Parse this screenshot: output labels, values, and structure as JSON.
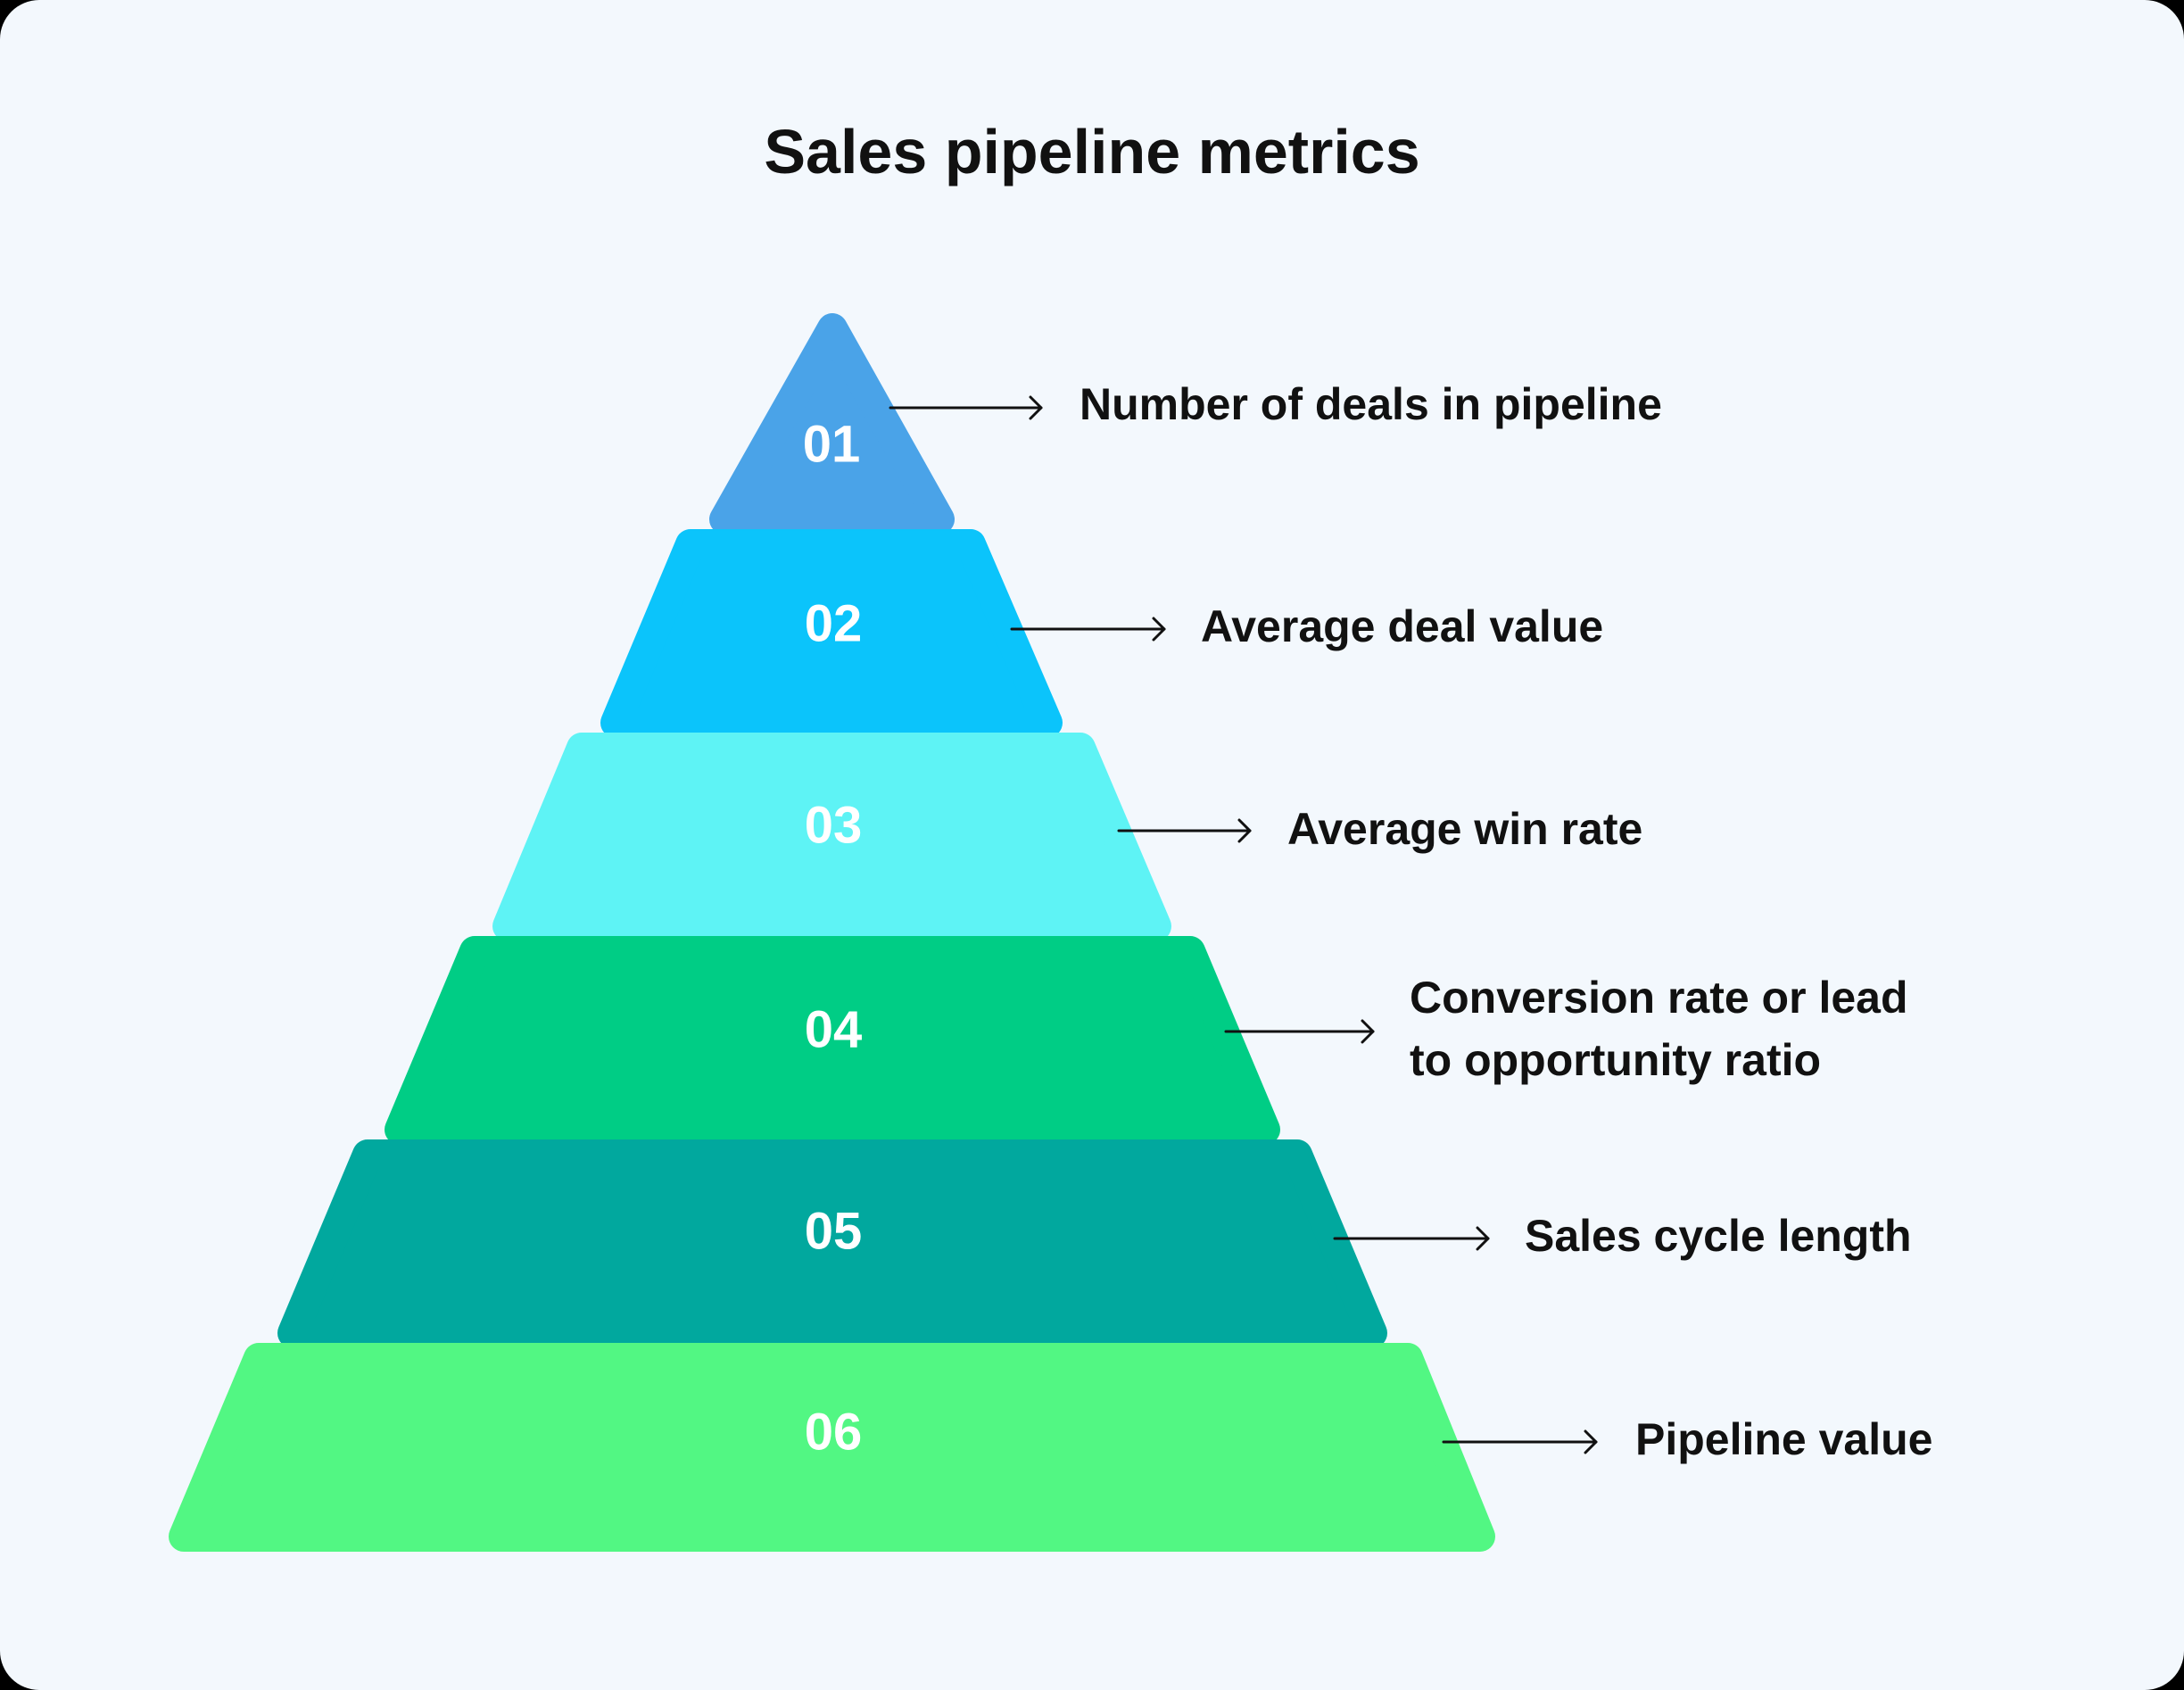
{
  "title": "Sales pipeline metrics",
  "tiers": [
    {
      "number": "01",
      "label_lines": [
        "Number of deals in pipeline"
      ],
      "color": "#4aa3e8"
    },
    {
      "number": "02",
      "label_lines": [
        "Average deal value"
      ],
      "color": "#0bc4fb"
    },
    {
      "number": "03",
      "label_lines": [
        "Average win rate"
      ],
      "color": "#5ef3f5"
    },
    {
      "number": "04",
      "label_lines": [
        "Conversion rate or lead",
        "to opportunity ratio"
      ],
      "color": "#00cd85"
    },
    {
      "number": "05",
      "label_lines": [
        "Sales cycle length"
      ],
      "color": "#01a89e"
    },
    {
      "number": "06",
      "label_lines": [
        "Pipeline value"
      ],
      "color": "#52f783"
    }
  ],
  "colors": {
    "background": "#f3f8fd",
    "text": "#111111",
    "number_text": "#ffffff"
  }
}
